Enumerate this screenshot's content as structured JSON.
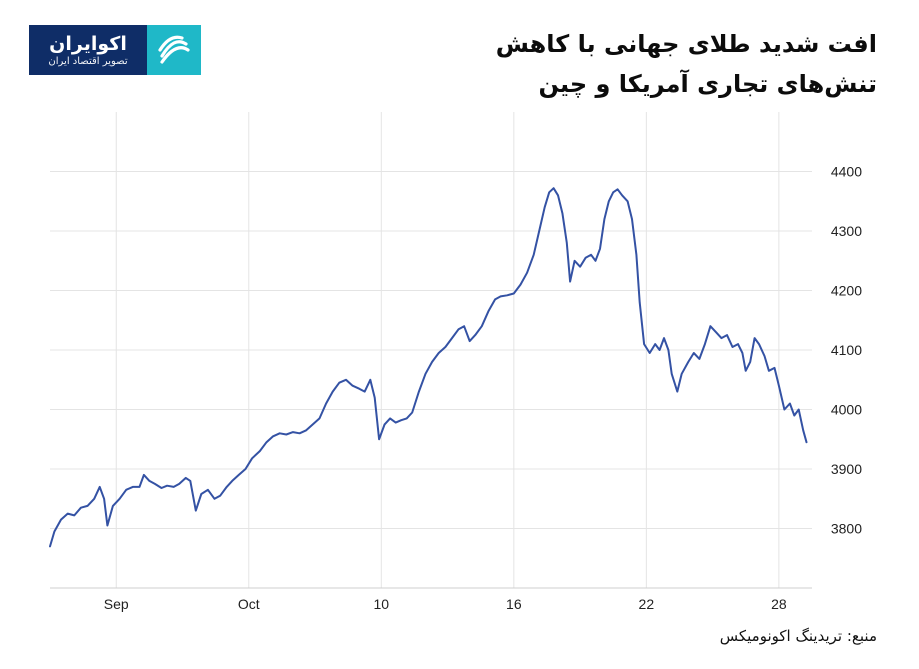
{
  "header": {
    "logo_name": "اکوایران",
    "logo_tagline": "تصویر اقتصاد ایران",
    "title_line1": "افت شدید طلای جهانی با کاهش",
    "title_line2": "تنش‌های تجاری آمریکا و چین"
  },
  "footer": {
    "source": "منبع: تریدینگ اکونومیکس"
  },
  "colors": {
    "line": "#3452a4",
    "grid": "#e4e4e4",
    "logo_bg": "#0f2d67",
    "logo_accent": "#1fb8c8"
  },
  "chart_data": {
    "type": "line",
    "title": "",
    "xlabel": "",
    "ylabel": "",
    "ylim": [
      3700,
      4500
    ],
    "yticks": [
      3800,
      3900,
      4000,
      4100,
      4200,
      4300,
      4400
    ],
    "xlim": [
      -6,
      63
    ],
    "x_ticks": [
      {
        "x": 0,
        "label": "Sep"
      },
      {
        "x": 12,
        "label": "Oct"
      },
      {
        "x": 24,
        "label": "10"
      },
      {
        "x": 36,
        "label": "16"
      },
      {
        "x": 48,
        "label": "22"
      },
      {
        "x": 60,
        "label": "28"
      }
    ],
    "grid": true,
    "series": [
      {
        "name": "",
        "points": [
          [
            -6.0,
            3770
          ],
          [
            -5.6,
            3795
          ],
          [
            -5.0,
            3815
          ],
          [
            -4.4,
            3825
          ],
          [
            -3.8,
            3822
          ],
          [
            -3.2,
            3835
          ],
          [
            -2.6,
            3838
          ],
          [
            -2.0,
            3850
          ],
          [
            -1.5,
            3870
          ],
          [
            -1.1,
            3850
          ],
          [
            -0.8,
            3805
          ],
          [
            -0.3,
            3838
          ],
          [
            0.3,
            3850
          ],
          [
            0.9,
            3865
          ],
          [
            1.5,
            3870
          ],
          [
            2.1,
            3870
          ],
          [
            2.5,
            3890
          ],
          [
            3.0,
            3880
          ],
          [
            3.5,
            3875
          ],
          [
            4.1,
            3868
          ],
          [
            4.6,
            3872
          ],
          [
            5.2,
            3870
          ],
          [
            5.7,
            3875
          ],
          [
            6.3,
            3885
          ],
          [
            6.7,
            3880
          ],
          [
            7.2,
            3830
          ],
          [
            7.7,
            3858
          ],
          [
            8.3,
            3865
          ],
          [
            8.9,
            3850
          ],
          [
            9.4,
            3855
          ],
          [
            10.0,
            3870
          ],
          [
            10.5,
            3880
          ],
          [
            11.1,
            3890
          ],
          [
            11.7,
            3900
          ],
          [
            12.3,
            3918
          ],
          [
            13.0,
            3930
          ],
          [
            13.6,
            3945
          ],
          [
            14.2,
            3955
          ],
          [
            14.8,
            3960
          ],
          [
            15.4,
            3958
          ],
          [
            16.0,
            3962
          ],
          [
            16.6,
            3960
          ],
          [
            17.2,
            3965
          ],
          [
            17.8,
            3975
          ],
          [
            18.4,
            3985
          ],
          [
            19.0,
            4010
          ],
          [
            19.6,
            4030
          ],
          [
            20.2,
            4045
          ],
          [
            20.8,
            4050
          ],
          [
            21.4,
            4040
          ],
          [
            22.0,
            4035
          ],
          [
            22.5,
            4030
          ],
          [
            23.0,
            4050
          ],
          [
            23.4,
            4020
          ],
          [
            23.8,
            3950
          ],
          [
            24.3,
            3975
          ],
          [
            24.8,
            3985
          ],
          [
            25.3,
            3978
          ],
          [
            25.8,
            3982
          ],
          [
            26.3,
            3985
          ],
          [
            26.8,
            3995
          ],
          [
            27.4,
            4030
          ],
          [
            28.0,
            4060
          ],
          [
            28.6,
            4080
          ],
          [
            29.2,
            4095
          ],
          [
            29.8,
            4105
          ],
          [
            30.4,
            4120
          ],
          [
            31.0,
            4135
          ],
          [
            31.5,
            4140
          ],
          [
            32.0,
            4115
          ],
          [
            32.5,
            4125
          ],
          [
            33.1,
            4140
          ],
          [
            33.7,
            4165
          ],
          [
            34.3,
            4185
          ],
          [
            34.8,
            4190
          ],
          [
            35.4,
            4192
          ],
          [
            36.0,
            4195
          ],
          [
            36.6,
            4210
          ],
          [
            37.2,
            4230
          ],
          [
            37.8,
            4260
          ],
          [
            38.3,
            4300
          ],
          [
            38.8,
            4340
          ],
          [
            39.2,
            4365
          ],
          [
            39.6,
            4372
          ],
          [
            40.0,
            4360
          ],
          [
            40.4,
            4330
          ],
          [
            40.8,
            4280
          ],
          [
            41.1,
            4215
          ],
          [
            41.5,
            4250
          ],
          [
            42.0,
            4240
          ],
          [
            42.5,
            4255
          ],
          [
            43.0,
            4260
          ],
          [
            43.4,
            4250
          ],
          [
            43.8,
            4270
          ],
          [
            44.2,
            4320
          ],
          [
            44.6,
            4350
          ],
          [
            45.0,
            4365
          ],
          [
            45.4,
            4370
          ],
          [
            45.8,
            4360
          ],
          [
            46.3,
            4350
          ],
          [
            46.7,
            4320
          ],
          [
            47.1,
            4260
          ],
          [
            47.4,
            4180
          ],
          [
            47.8,
            4110
          ],
          [
            48.3,
            4095
          ],
          [
            48.8,
            4110
          ],
          [
            49.2,
            4100
          ],
          [
            49.6,
            4120
          ],
          [
            50.0,
            4100
          ],
          [
            50.3,
            4060
          ],
          [
            50.8,
            4030
          ],
          [
            51.2,
            4060
          ],
          [
            51.8,
            4080
          ],
          [
            52.3,
            4095
          ],
          [
            52.8,
            4085
          ],
          [
            53.3,
            4110
          ],
          [
            53.8,
            4140
          ],
          [
            54.3,
            4130
          ],
          [
            54.8,
            4120
          ],
          [
            55.3,
            4125
          ],
          [
            55.8,
            4105
          ],
          [
            56.3,
            4110
          ],
          [
            56.7,
            4095
          ],
          [
            57.0,
            4065
          ],
          [
            57.4,
            4080
          ],
          [
            57.8,
            4120
          ],
          [
            58.2,
            4110
          ],
          [
            58.7,
            4090
          ],
          [
            59.1,
            4065
          ],
          [
            59.6,
            4070
          ],
          [
            60.0,
            4040
          ],
          [
            60.5,
            4000
          ],
          [
            61.0,
            4010
          ],
          [
            61.4,
            3990
          ],
          [
            61.8,
            4000
          ],
          [
            62.2,
            3965
          ],
          [
            62.5,
            3945
          ]
        ]
      }
    ]
  }
}
